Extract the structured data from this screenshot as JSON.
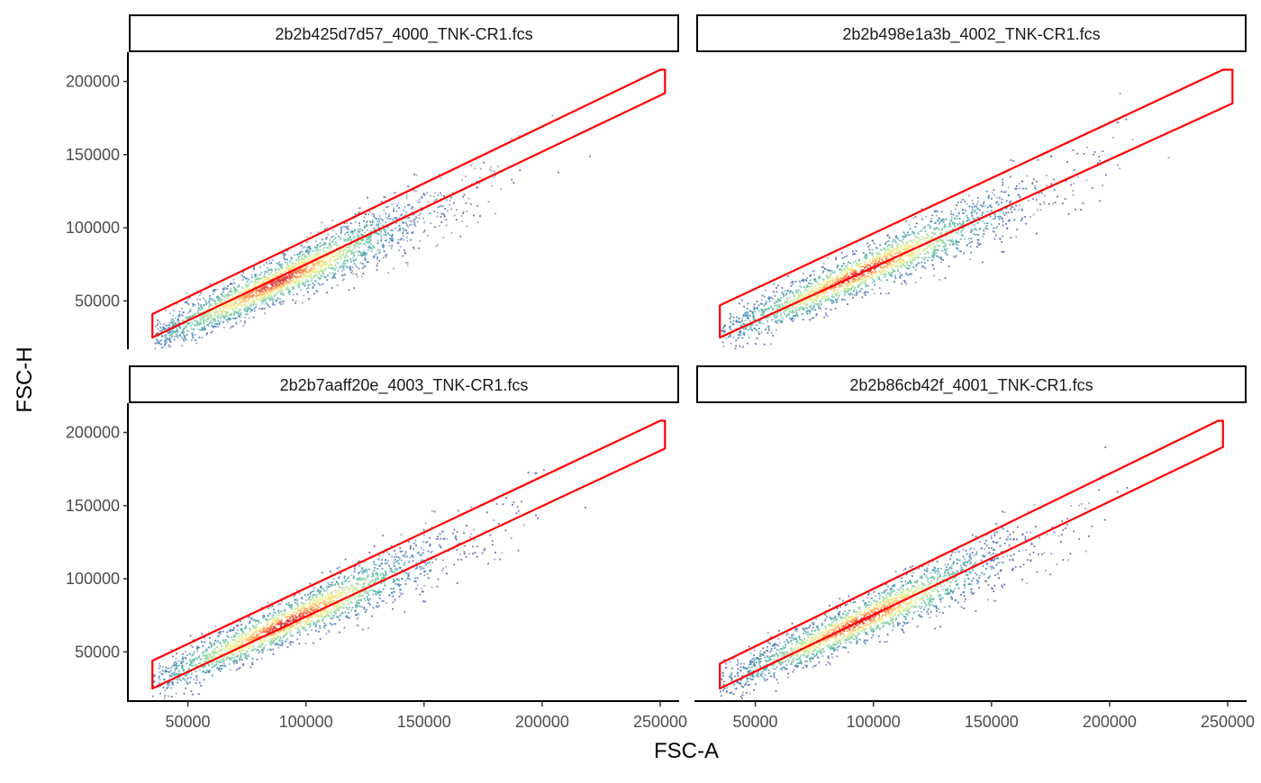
{
  "chart_data": {
    "type": "scatter",
    "subtype": "density-scatter-facets",
    "xlabel": "FSC-A",
    "ylabel": "FSC-H",
    "xlim": [
      25000,
      258000
    ],
    "ylim": [
      17000,
      220000
    ],
    "x_ticks": [
      50000,
      100000,
      150000,
      200000,
      250000
    ],
    "y_ticks": [
      50000,
      100000,
      150000,
      200000
    ],
    "x_tick_labels": [
      "50000",
      "100000",
      "150000",
      "200000",
      "250000"
    ],
    "y_tick_labels": [
      "50000",
      "100000",
      "150000",
      "200000"
    ],
    "grid": false,
    "colors": {
      "gate": "#ff0000",
      "density_low": "#5e4fa2",
      "density_mid": "#abdda4",
      "density_high": "#d53e4f",
      "strip_border": "#000000",
      "axis": "#000000"
    },
    "panels": [
      {
        "title": "2b2b425d7d57_4000_TNK-CR1.fcs",
        "gate_polygon": [
          [
            35000,
            41000
          ],
          [
            250000,
            208000
          ],
          [
            252000,
            208000
          ],
          [
            252000,
            192000
          ],
          [
            35000,
            25000
          ]
        ],
        "population": {
          "slope": 0.75,
          "intercept": -3000,
          "x_center": 88000,
          "x_sd": 32000,
          "spread_sd": 7000,
          "x_min": 35000,
          "x_max": 252000
        }
      },
      {
        "title": "2b2b498e1a3b_4002_TNK-CR1.fcs",
        "gate_polygon": [
          [
            35000,
            47000
          ],
          [
            248000,
            208000
          ],
          [
            252000,
            208000
          ],
          [
            252000,
            185000
          ],
          [
            35000,
            25000
          ]
        ],
        "population": {
          "slope": 0.72,
          "intercept": 1000,
          "x_center": 95000,
          "x_sd": 35000,
          "spread_sd": 7000,
          "x_min": 35000,
          "x_max": 252000
        }
      },
      {
        "title": "2b2b7aaff20e_4003_TNK-CR1.fcs",
        "gate_polygon": [
          [
            35000,
            44000
          ],
          [
            250000,
            208000
          ],
          [
            252000,
            208000
          ],
          [
            252000,
            189000
          ],
          [
            35000,
            25000
          ]
        ],
        "population": {
          "slope": 0.74,
          "intercept": 2000,
          "x_center": 92000,
          "x_sd": 34000,
          "spread_sd": 7000,
          "x_min": 35000,
          "x_max": 252000
        }
      },
      {
        "title": "2b2b86cb42f_4001_TNK-CR1.fcs",
        "gate_polygon": [
          [
            35000,
            42000
          ],
          [
            246000,
            208000
          ],
          [
            248000,
            208000
          ],
          [
            248000,
            190000
          ],
          [
            35000,
            25000
          ]
        ],
        "population": {
          "slope": 0.74,
          "intercept": 1000,
          "x_center": 95000,
          "x_sd": 33000,
          "spread_sd": 7000,
          "x_min": 35000,
          "x_max": 250000
        }
      }
    ]
  }
}
